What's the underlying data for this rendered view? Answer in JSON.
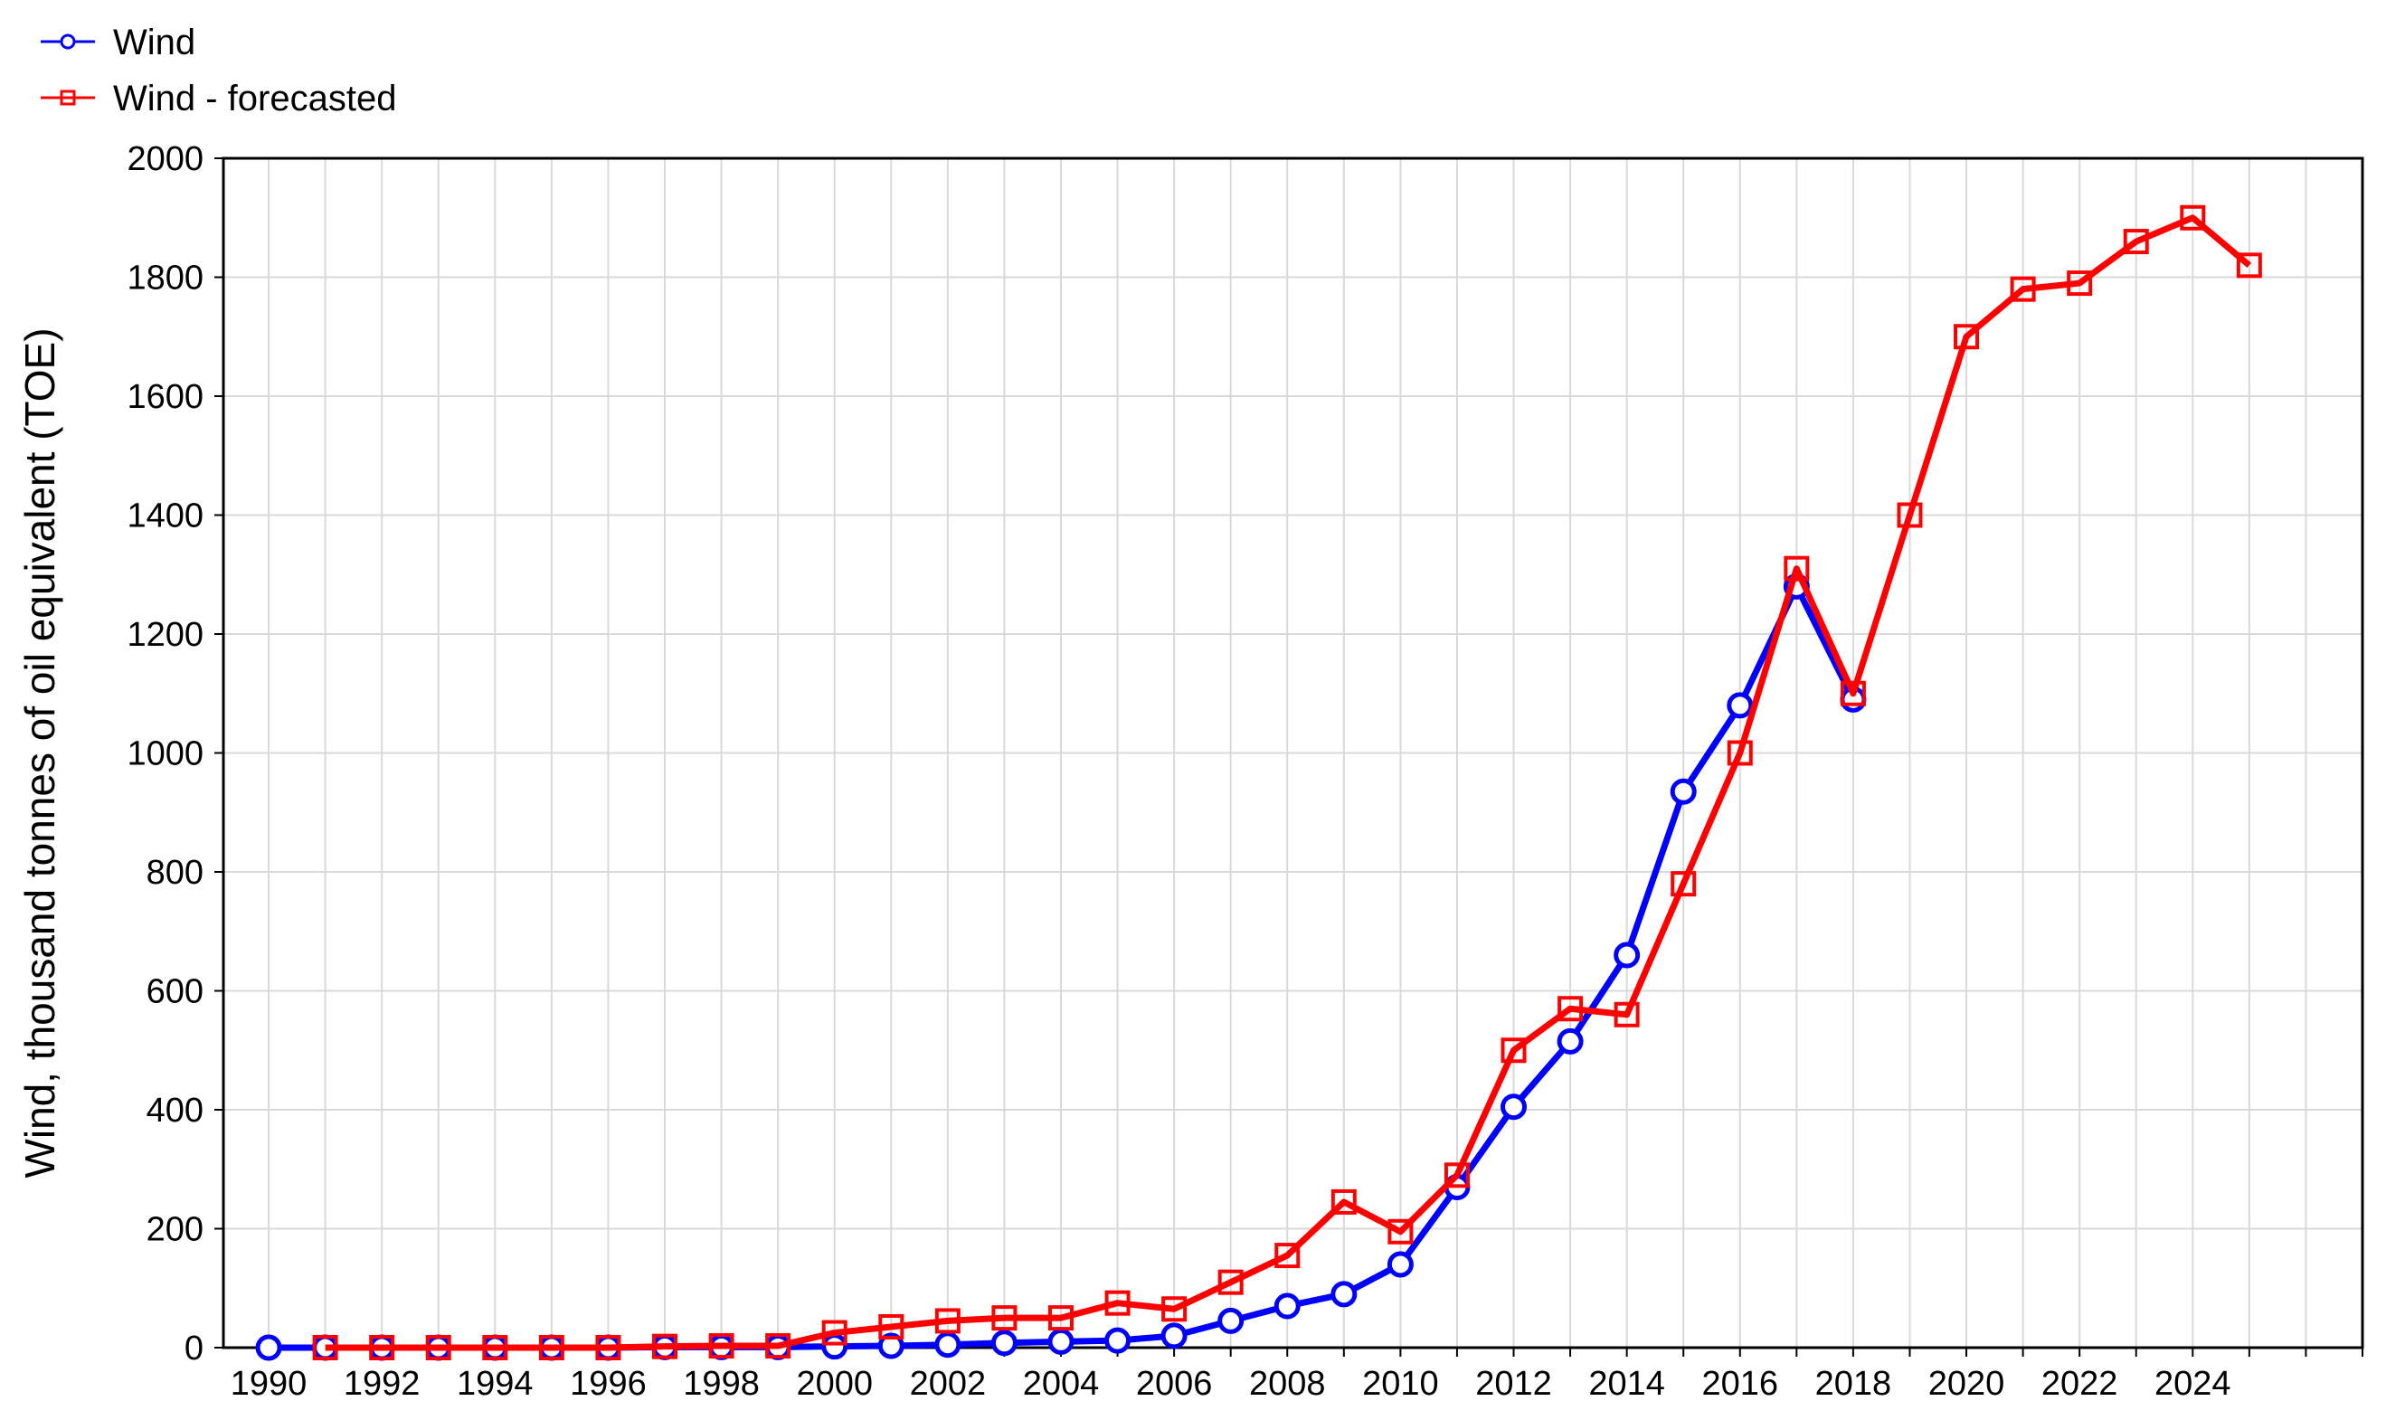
{
  "chart_data": {
    "type": "line",
    "title": "",
    "xlabel": "",
    "ylabel": "Wind, thousand tonnes of oil equivalent (TOE)",
    "xlim": [
      1989.2,
      2027.0
    ],
    "ylim": [
      0,
      2000
    ],
    "x_ticks": [
      1990,
      1992,
      1994,
      1996,
      1998,
      2000,
      2002,
      2004,
      2006,
      2008,
      2010,
      2012,
      2014,
      2016,
      2018,
      2020,
      2022,
      2024
    ],
    "y_ticks": [
      0,
      200,
      400,
      600,
      800,
      1000,
      1200,
      1400,
      1600,
      1800,
      2000
    ],
    "grid": true,
    "legend_position": "top-left",
    "series": [
      {
        "name": "Wind",
        "color": "#0000ff",
        "marker": "circle",
        "x": [
          1990,
          1991,
          1992,
          1993,
          1994,
          1995,
          1996,
          1997,
          1998,
          1999,
          2000,
          2001,
          2002,
          2003,
          2004,
          2005,
          2006,
          2007,
          2008,
          2009,
          2010,
          2011,
          2012,
          2013,
          2014,
          2015,
          2016,
          2017,
          2018
        ],
        "values": [
          0,
          0,
          0,
          0,
          0,
          0,
          0,
          1,
          1,
          1,
          2,
          3,
          5,
          8,
          10,
          12,
          20,
          45,
          70,
          90,
          140,
          270,
          405,
          515,
          660,
          935,
          1080,
          1280,
          1090
        ]
      },
      {
        "name": "Wind - forecasted",
        "color": "#ff0000",
        "marker": "square",
        "x": [
          1991,
          1992,
          1993,
          1994,
          1995,
          1996,
          1997,
          1998,
          1999,
          2000,
          2001,
          2002,
          2003,
          2004,
          2005,
          2006,
          2007,
          2008,
          2009,
          2010,
          2011,
          2012,
          2013,
          2014,
          2015,
          2016,
          2017,
          2018,
          2019,
          2020,
          2021,
          2022,
          2023,
          2024,
          2025
        ],
        "values": [
          0,
          0,
          0,
          0,
          0,
          0,
          2,
          3,
          3,
          25,
          35,
          45,
          50,
          50,
          75,
          65,
          110,
          155,
          245,
          195,
          290,
          500,
          570,
          560,
          780,
          1000,
          1310,
          1100,
          1400,
          1700,
          1780,
          1790,
          1860,
          1900,
          1820
        ]
      }
    ]
  }
}
